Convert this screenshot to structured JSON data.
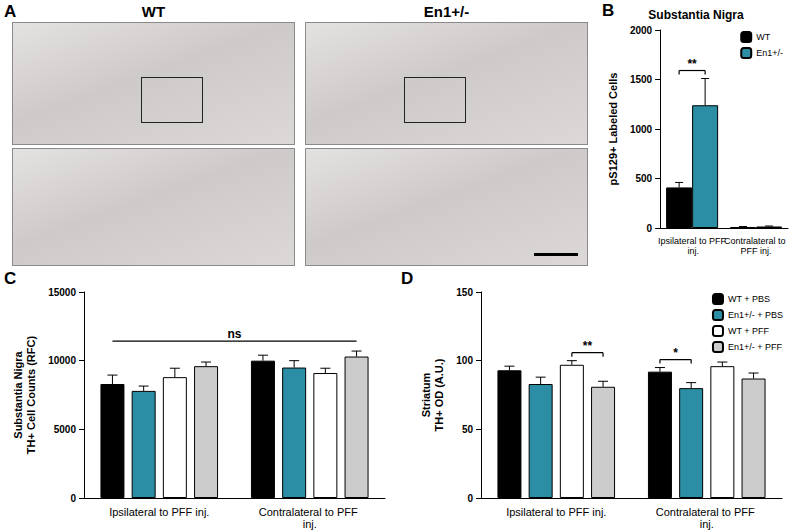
{
  "images": {
    "panel_label": "A",
    "columns": [
      "WT",
      "En1+/-"
    ]
  },
  "chart_data": [
    {
      "type": "bar",
      "panel_label": "B",
      "title": "Substantia Nigra",
      "ylabel": "pS129+ Labeled Cells",
      "categories": [
        "Ipsilateral to PFF inj.",
        "Contralateral to PFF inj."
      ],
      "series": [
        {
          "name": "WT",
          "color": "#000000",
          "values": [
            410,
            10
          ],
          "errors": [
            50,
            5
          ]
        },
        {
          "name": "En1+/-",
          "color": "#2b8ea5",
          "values": [
            1240,
            15
          ],
          "errors": [
            270,
            5
          ]
        }
      ],
      "ylim": [
        0,
        2000
      ],
      "yticks": [
        0,
        500,
        1000,
        1500,
        2000
      ],
      "grid": false,
      "legend": "top-right",
      "annotations": [
        {
          "text": "**",
          "category": "Ipsilateral to PFF inj.",
          "series": [
            "WT",
            "En1+/-"
          ]
        }
      ]
    },
    {
      "type": "bar",
      "panel_label": "C",
      "ylabel": "Substantia Nigra\nTH+ Cell Counts (RFC)",
      "categories": [
        "Ipsilateral to PFF inj.",
        "Contralateral to PFF inj."
      ],
      "series": [
        {
          "color": "#000000",
          "values": [
            8300,
            10000
          ],
          "errors": [
            650,
            400
          ]
        },
        {
          "color": "#2b8ea5",
          "values": [
            7800,
            9500
          ],
          "errors": [
            350,
            500
          ]
        },
        {
          "color": "#ffffff",
          "values": [
            8800,
            9100
          ],
          "errors": [
            650,
            350
          ]
        },
        {
          "color": "#cccccc",
          "values": [
            9600,
            10300
          ],
          "errors": [
            300,
            400
          ]
        }
      ],
      "ylim": [
        0,
        15000
      ],
      "yticks": [
        0,
        5000,
        10000,
        15000
      ],
      "grid": false,
      "annotations": [
        {
          "text": "ns"
        }
      ]
    },
    {
      "type": "bar",
      "panel_label": "D",
      "ylabel": "Striatum\nTH+ OD (A.U.)",
      "categories": [
        "Ipsilateral to PFF inj.",
        "Contralateral to PFF inj."
      ],
      "series": [
        {
          "name": "WT + PBS",
          "color": "#000000",
          "values": [
            93,
            92
          ],
          "errors": [
            3,
            3
          ]
        },
        {
          "name": "En1+/- + PBS",
          "color": "#2b8ea5",
          "values": [
            83,
            80
          ],
          "errors": [
            5,
            4
          ]
        },
        {
          "name": "WT + PFF",
          "color": "#ffffff",
          "values": [
            97,
            96
          ],
          "errors": [
            3,
            3
          ]
        },
        {
          "name": "En1+/- + PFF",
          "color": "#cccccc",
          "values": [
            81,
            87
          ],
          "errors": [
            4,
            4
          ]
        }
      ],
      "ylim": [
        0,
        150
      ],
      "yticks": [
        0,
        50,
        100,
        150
      ],
      "grid": false,
      "legend": "top-right",
      "annotations": [
        {
          "text": "**",
          "category": "Ipsilateral to PFF inj.",
          "series": [
            "WT + PFF",
            "En1+/- + PFF"
          ]
        },
        {
          "text": "*",
          "category": "Contralateral to PFF inj.",
          "series": [
            "WT + PBS",
            "En1+/- + PBS"
          ]
        }
      ]
    }
  ]
}
